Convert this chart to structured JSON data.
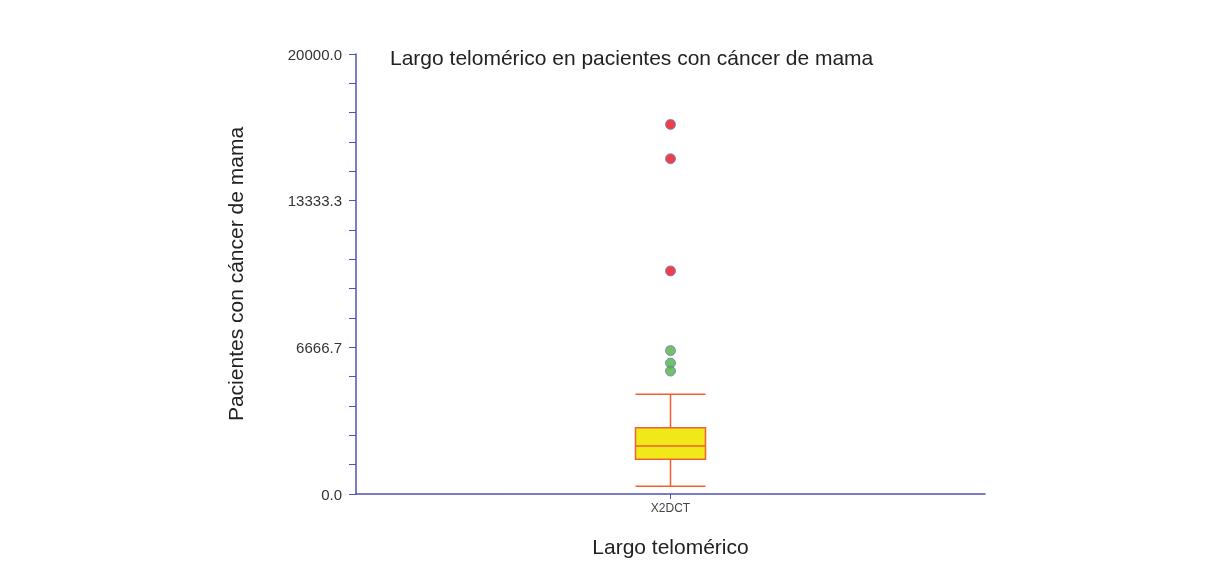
{
  "chart_data": {
    "type": "box",
    "title": "Largo telomérico en pacientes con cáncer de mama",
    "xlabel": "Largo telomérico",
    "ylabel": "Pacientes con cáncer de mama",
    "categories": [
      "X2DCT"
    ],
    "boxes": [
      {
        "low": 350,
        "q1": 1580,
        "median": 2180,
        "q3": 3010,
        "high": 4530
      }
    ],
    "color": "#f0e818",
    "series": [
      {
        "type": "scatter",
        "x": [
          "X2DCT",
          "X2DCT",
          "X2DCT"
        ],
        "values": [
          16800,
          15240,
          10140
        ],
        "color": "#e8101c"
      },
      {
        "type": "scatter",
        "x": [
          "X2DCT",
          "X2DCT",
          "X2DCT"
        ],
        "values": [
          6520,
          5950,
          5590
        ],
        "color": "#50b040"
      }
    ],
    "ylim": [
      0,
      20000
    ],
    "yticks": [
      {
        "value": 0,
        "label": "0.0"
      },
      {
        "value": 1333.3,
        "label": null
      },
      {
        "value": 2666.7,
        "label": null
      },
      {
        "value": 4000,
        "label": null
      },
      {
        "value": 5333.3,
        "label": null
      },
      {
        "value": 6666.7,
        "label": "6666.7"
      },
      {
        "value": 8000,
        "label": null
      },
      {
        "value": 9333.3,
        "label": null
      },
      {
        "value": 10666.7,
        "label": null
      },
      {
        "value": 12000,
        "label": null
      },
      {
        "value": 13333.3,
        "label": "13333.3"
      },
      {
        "value": 14666.7,
        "label": null
      },
      {
        "value": 16000,
        "label": null
      },
      {
        "value": 17333.3,
        "label": null
      },
      {
        "value": 18666.7,
        "label": null
      },
      {
        "value": 20000,
        "label": "20000.0"
      }
    ],
    "grid": false,
    "marker": "circle"
  }
}
